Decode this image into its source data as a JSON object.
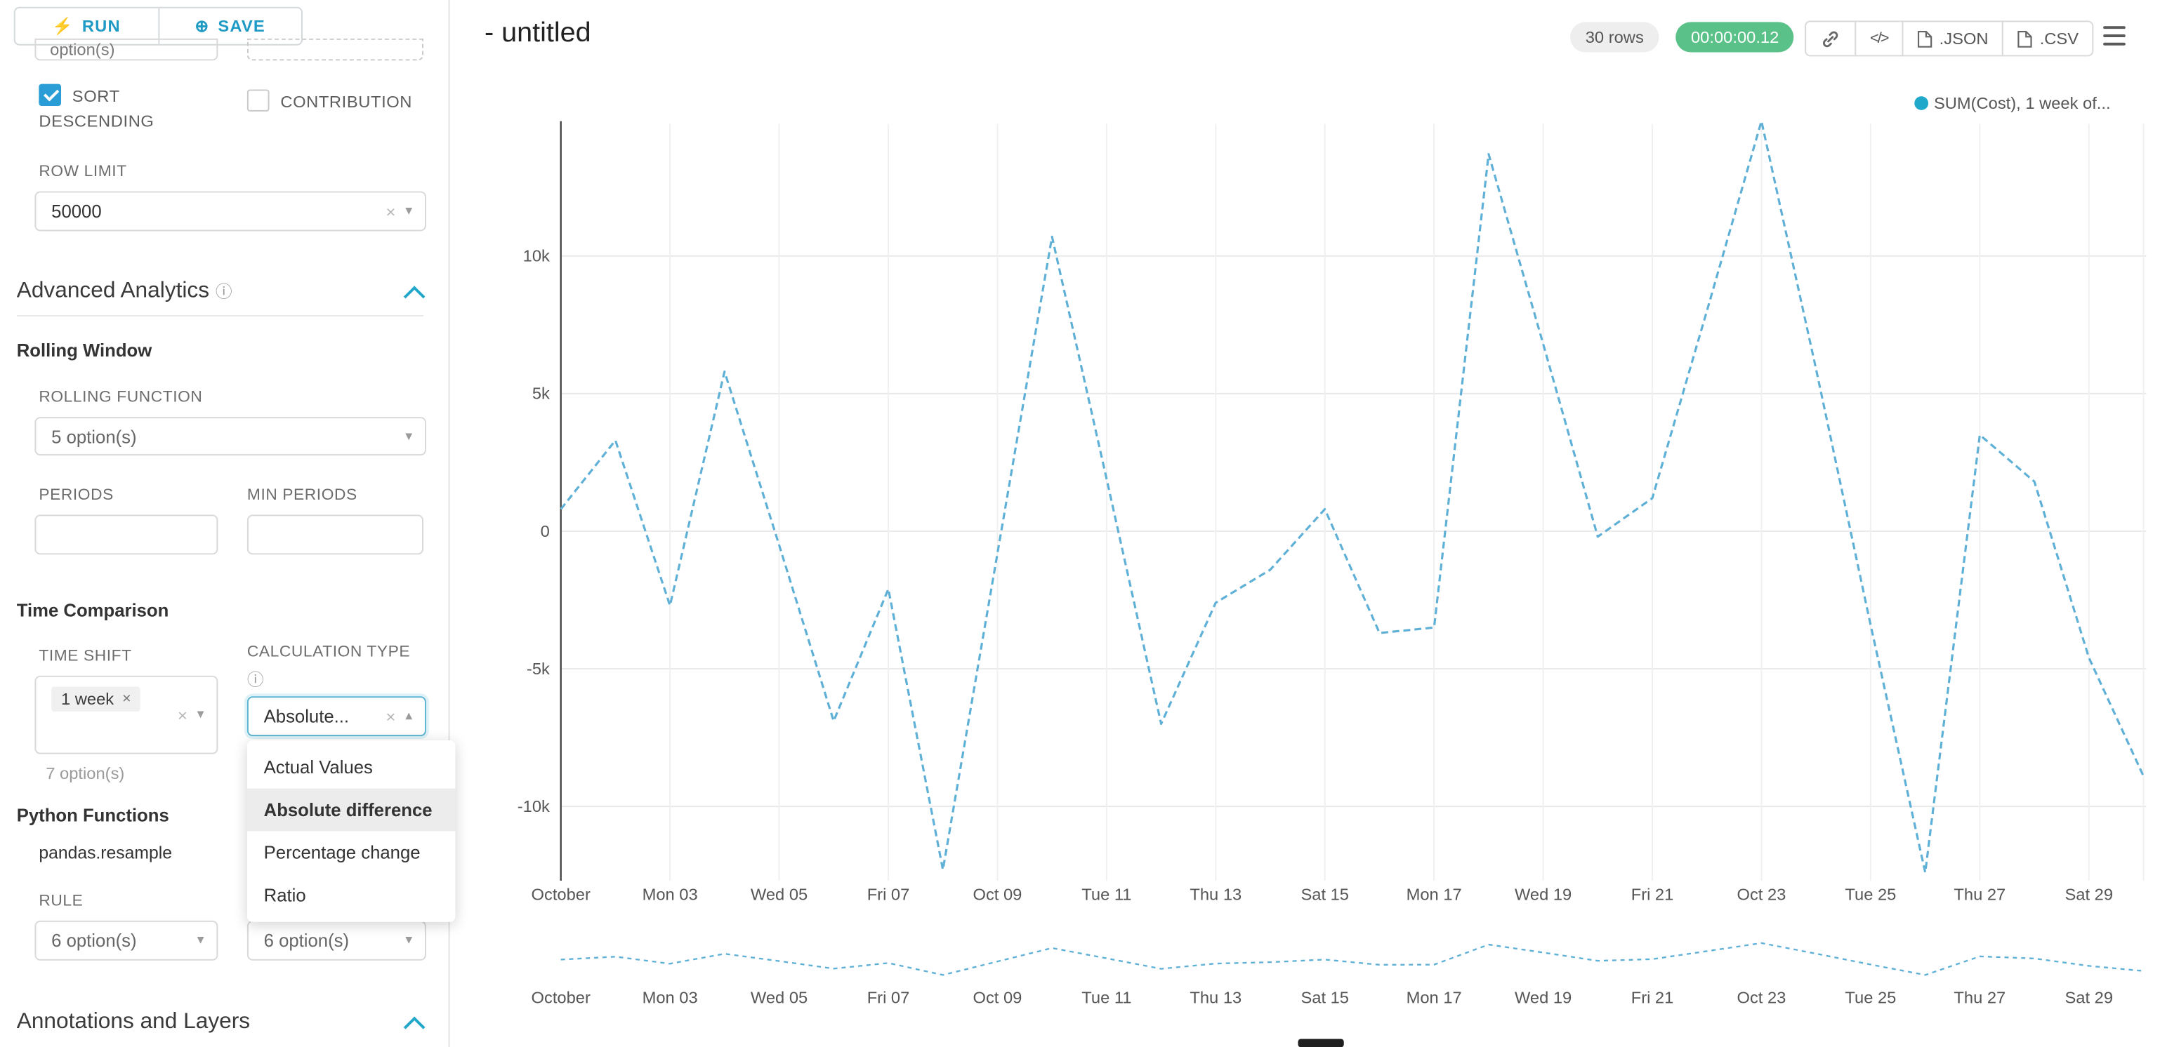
{
  "toolbar": {
    "run_label": "RUN",
    "save_label": "SAVE"
  },
  "header": {
    "title": "- untitled",
    "rows_badge": "30 rows",
    "timer_badge": "00:00:00.12",
    "export_json_label": ".JSON",
    "export_csv_label": ".CSV"
  },
  "icons": {
    "run": "⚡",
    "save": "⊕",
    "caret_down": "▾",
    "caret_up": "▴",
    "clear": "×",
    "info": "ⓘ",
    "code": "</>"
  },
  "sidebar": {
    "partial_top": {
      "left_text": "option(s)"
    },
    "sort_descending": {
      "label": "SORT DESCENDING",
      "checked": true
    },
    "contribution": {
      "label": "CONTRIBUTION",
      "checked": false
    },
    "row_limit": {
      "label": "ROW LIMIT",
      "value": "50000"
    },
    "advanced_analytics_title": "Advanced Analytics",
    "rolling_window": {
      "title": "Rolling Window",
      "rolling_function_label": "ROLLING FUNCTION",
      "rolling_function_value": "5 option(s)",
      "periods_label": "PERIODS",
      "min_periods_label": "MIN PERIODS"
    },
    "time_comparison": {
      "title": "Time Comparison",
      "time_shift_label": "TIME SHIFT",
      "time_shift_tag": "1 week",
      "time_shift_hint": "7 option(s)",
      "calculation_type_label": "CALCULATION TYPE",
      "calculation_type_value": "Absolute...",
      "calculation_type_options": [
        "Actual Values",
        "Absolute difference",
        "Percentage change",
        "Ratio"
      ],
      "calculation_type_selected": 1
    },
    "python_functions": {
      "title": "Python Functions",
      "function_name": "pandas.resample",
      "rule_label": "RULE",
      "rule_value": "6 option(s)",
      "rule_value_2": "6 option(s)"
    },
    "annotations_title": "Annotations and Layers"
  },
  "chart_data": {
    "type": "line",
    "title": "",
    "legend_entries": [
      "SUM(Cost), 1 week of..."
    ],
    "legend_position": "top-right",
    "grid": true,
    "x_axis": {
      "n_points": 30,
      "unit": "day",
      "tick_labels": [
        "October",
        "Mon 03",
        "Wed 05",
        "Fri 07",
        "Oct 09",
        "Tue 11",
        "Thu 13",
        "Sat 15",
        "Mon 17",
        "Wed 19",
        "Fri 21",
        "Oct 23",
        "Tue 25",
        "Thu 27",
        "Sat 29"
      ],
      "tick_indices": [
        0,
        2,
        4,
        6,
        8,
        10,
        12,
        14,
        16,
        18,
        20,
        22,
        24,
        26,
        28
      ]
    },
    "y_axis": {
      "ticks": [
        {
          "label": "10k",
          "value": 10000
        },
        {
          "label": "5k",
          "value": 5000
        },
        {
          "label": "0",
          "value": 0
        },
        {
          "label": "-5k",
          "value": -5000
        },
        {
          "label": "-10k",
          "value": -10000
        }
      ],
      "range": [
        -13000,
        15200
      ]
    },
    "series": [
      {
        "name": "SUM(Cost), 1 week of...",
        "style": "dashed",
        "color": "#5FB0D6",
        "values": [
          800,
          3300,
          -2700,
          5800,
          -500,
          -6900,
          -2100,
          -12300,
          -800,
          10700,
          1900,
          -7000,
          -2600,
          -1400,
          800,
          -3700,
          -3500,
          13700,
          6800,
          -200,
          1200,
          8000,
          14900,
          5900,
          -3400,
          -12400,
          3500,
          1800,
          -4600,
          -8900
        ]
      }
    ],
    "mini_preview": true
  },
  "colors": {
    "accent": "#20a7c9",
    "success_green": "#5ac189",
    "line": "#5FB0D6",
    "legend_dot": "#1FA8C9",
    "grid": "#e9e9e9"
  }
}
